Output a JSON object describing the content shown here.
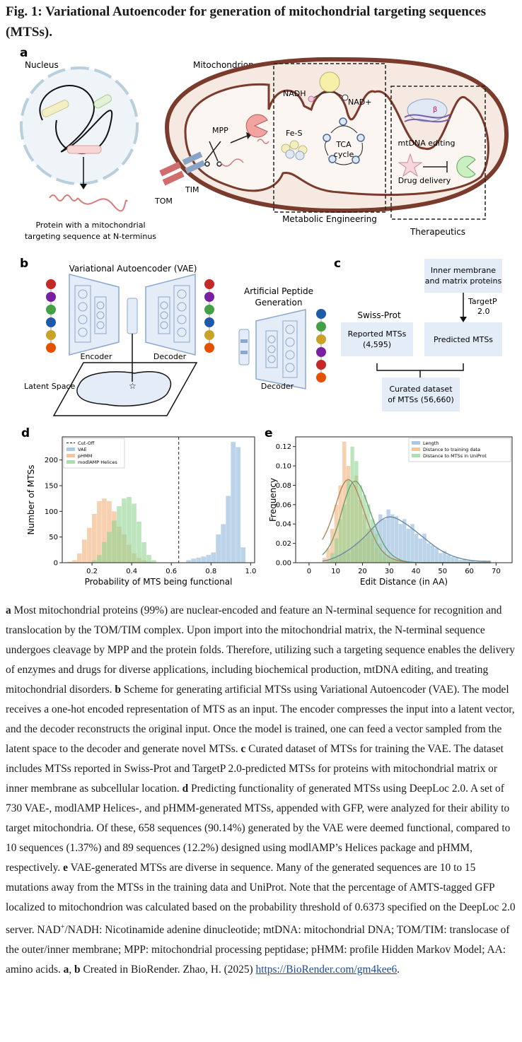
{
  "figure": {
    "title": "Fig. 1: Variational Autoencoder for generation of mitochondrial targeting sequences (MTSs)."
  },
  "panel_a": {
    "label": "a",
    "nucleus": "Nucleus",
    "mitochondrion": "Mitochondrion",
    "protein_caption_1": "Protein with a mitochondrial",
    "protein_caption_2": "targeting sequence at N-terminus",
    "nadh": "NADH",
    "nad_plus": "NAD+",
    "fes": "Fe-S",
    "tca_1": "TCA",
    "tca_2": "cycle",
    "mpp": "MPP",
    "tom": "TOM",
    "tim": "TIM",
    "metabolic_engineering": "Metabolic Engineering",
    "therapeutics": "Therapeutics",
    "mtdna_editing": "mtDNA editing",
    "drug_delivery": "Drug delivery"
  },
  "panel_b": {
    "label": "b",
    "vae_title": "Variational Autoencoder (VAE)",
    "encoder": "Encoder",
    "decoder": "Decoder",
    "latent_space": "Latent Space",
    "artificial_1": "Artificial Peptide",
    "artificial_2": "Generation",
    "decoder2": "Decoder"
  },
  "panel_c": {
    "label": "c",
    "inner_1": "Inner membrane",
    "inner_2": "and matrix proteins",
    "targetp_1": "TargetP",
    "targetp_2": "2.0",
    "swissprot": "Swiss-Prot",
    "reported_1": "Reported MTSs",
    "reported_2": "(4,595)",
    "predicted": "Predicted MTSs",
    "curated_1": "Curated dataset",
    "curated_2": "of MTSs (56,660)"
  },
  "chart_data": [
    {
      "panel": "d",
      "type": "bar",
      "xlabel": "Probability of MTS being functional",
      "ylabel": "Number of MTSs",
      "xlim": [
        0.05,
        1.02
      ],
      "ylim": [
        0,
        245
      ],
      "xticks": [
        "0.2",
        "0.4",
        "0.6",
        "0.8",
        "1.0"
      ],
      "yticks": [
        "0",
        "50",
        "100",
        "150",
        "200"
      ],
      "cutoff": 0.6373,
      "legend": [
        "Cut-Off",
        "VAE",
        "pHMM",
        "modlAMP Helices"
      ],
      "bin_start": 0.05,
      "bin_width": 0.025,
      "series": [
        {
          "name": "VAE",
          "color": "#8fb7db",
          "values": [
            0,
            0,
            0,
            0,
            0,
            0,
            0,
            0,
            0,
            0,
            0,
            0,
            0,
            0,
            0,
            0,
            0,
            0,
            0,
            0,
            0,
            0,
            0,
            0,
            0,
            5,
            8,
            10,
            12,
            15,
            20,
            55,
            75,
            130,
            235,
            225,
            30,
            0
          ]
        },
        {
          "name": "pHMM",
          "color": "#f0b07a",
          "values": [
            0,
            2,
            5,
            18,
            45,
            68,
            95,
            120,
            125,
            120,
            100,
            70,
            55,
            35,
            18,
            9,
            5,
            2,
            0,
            0,
            0,
            0,
            0,
            0,
            0,
            0,
            0,
            0,
            0,
            0,
            0,
            0,
            0,
            0,
            0,
            0,
            0,
            0
          ]
        },
        {
          "name": "modlAMP Helices",
          "color": "#8fd492",
          "values": [
            0,
            0,
            0,
            0,
            0,
            0,
            5,
            15,
            40,
            60,
            82,
            110,
            125,
            128,
            115,
            80,
            40,
            15,
            5,
            0,
            0,
            0,
            0,
            0,
            0,
            0,
            0,
            0,
            0,
            0,
            0,
            0,
            0,
            0,
            0,
            0,
            0,
            0
          ]
        }
      ]
    },
    {
      "panel": "e",
      "type": "bar",
      "xlabel": "Edit Distance (in AA)",
      "ylabel": "Frequency",
      "xlim": [
        -5,
        76
      ],
      "ylim": [
        0,
        0.13
      ],
      "xticks": [
        "0",
        "10",
        "20",
        "30",
        "40",
        "50",
        "60",
        "70"
      ],
      "yticks": [
        "0.00",
        "0.02",
        "0.04",
        "0.06",
        "0.08",
        "0.10",
        "0.12"
      ],
      "legend": [
        "Length",
        "Distance to training data",
        "Distance to MTSs in UniProt"
      ],
      "bin_start": 5,
      "bin_width": 1.5,
      "series": [
        {
          "name": "Length",
          "color": "#8fb7db",
          "values": [
            0,
            0,
            0.003,
            0.005,
            0.008,
            0.012,
            0.01,
            0.015,
            0.02,
            0.022,
            0.025,
            0.03,
            0.035,
            0.04,
            0.05,
            0.045,
            0.055,
            0.05,
            0.048,
            0.04,
            0.045,
            0.035,
            0.04,
            0.03,
            0.025,
            0.03,
            0.02,
            0.018,
            0.015,
            0.01,
            0.012,
            0.008,
            0.006,
            0.005,
            0.003,
            0.004,
            0.002,
            0.002,
            0.001,
            0.001,
            0.002,
            0.001
          ]
        },
        {
          "name": "Distance to training data",
          "color": "#f0b07a",
          "values": [
            0.005,
            0.015,
            0.035,
            0.06,
            0.08,
            0.125,
            0.1,
            0.08,
            0.09,
            0.065,
            0.05,
            0.035,
            0.025,
            0.015,
            0.01,
            0.006,
            0.004,
            0.003,
            0.002,
            0.001,
            0.001,
            0,
            0,
            0,
            0,
            0,
            0,
            0,
            0,
            0,
            0,
            0,
            0,
            0,
            0,
            0,
            0,
            0,
            0,
            0,
            0,
            0
          ]
        },
        {
          "name": "Distance to MTSs in UniProt",
          "color": "#8fd492",
          "values": [
            0,
            0.003,
            0.01,
            0.025,
            0.045,
            0.06,
            0.085,
            0.12,
            0.105,
            0.08,
            0.07,
            0.06,
            0.045,
            0.03,
            0.02,
            0.012,
            0.008,
            0.005,
            0.003,
            0.002,
            0,
            0,
            0,
            0,
            0,
            0,
            0,
            0,
            0,
            0,
            0,
            0,
            0,
            0,
            0,
            0,
            0,
            0,
            0,
            0,
            0,
            0
          ]
        }
      ]
    }
  ],
  "caption": {
    "a_label": "a",
    "a_text": " Most mitochondrial proteins (99%) are nuclear-encoded and feature an N-terminal sequence for recognition and translocation by the TOM/TIM complex. Upon import into the mitochondrial matrix, the N-terminal sequence undergoes cleavage by MPP and the protein folds. Therefore, utilizing such a targeting sequence enables the delivery of enzymes and drugs for diverse applications, including biochemical production, mtDNA editing, and treating mitochondrial disorders. ",
    "b_label": "b",
    "b_text": " Scheme for generating artificial MTSs using Variational Autoencoder (VAE). The model receives a one-hot encoded representation of MTS as an input. The encoder compresses the input into a latent vector, and the decoder reconstructs the original input. Once the model is trained, one can feed a vector sampled from the latent space to the decoder and generate novel MTSs. ",
    "c_label": "c",
    "c_text": " Curated dataset of MTSs for training the VAE. The dataset includes MTSs reported in Swiss-Prot and TargetP 2.0-predicted MTSs for proteins with mitochondrial matrix or inner membrane as subcellular location. ",
    "d_label": "d",
    "d_text": " Predicting functionality of generated MTSs using DeepLoc 2.0. A set of 730 VAE-, modlAMP Helices-, and pHMM-generated MTSs, appended with GFP, were analyzed for their ability to target mitochondria. Of these, 658 sequences (90.14%) generated by the VAE were deemed functional, compared to 10 sequences (1.37%) and 89 sequences (12.2%) designed using modlAMP’s Helices package and pHMM, respectively. ",
    "e_label": "e",
    "e_text": " VAE-generated MTSs are diverse in sequence. Many of the generated sequences are 10 to 15 mutations away from the MTSs in the training data and UniProt. Note that the percentage of AMTS-tagged GFP localized to mitochondrion was calculated based on the probability threshold of 0.6373 specified on the DeepLoc 2.0 server. NAD",
    "sup_plus": "+",
    "abbrev_text": "/NADH: Nicotinamide adenine dinucleotide; mtDNA: mitochondrial DNA; TOM/TIM: translocase of the outer/inner membrane; MPP: mitochondrial processing peptidase; pHMM: profile Hidden Markov Model; AA: amino acids. ",
    "ab_a": "a",
    "ab_sep": ", ",
    "ab_b": "b",
    "credit": " Created in BioRender. Zhao, H. (2025) ",
    "link": "https://BioRender.com/gm4kee6",
    "end": "."
  }
}
